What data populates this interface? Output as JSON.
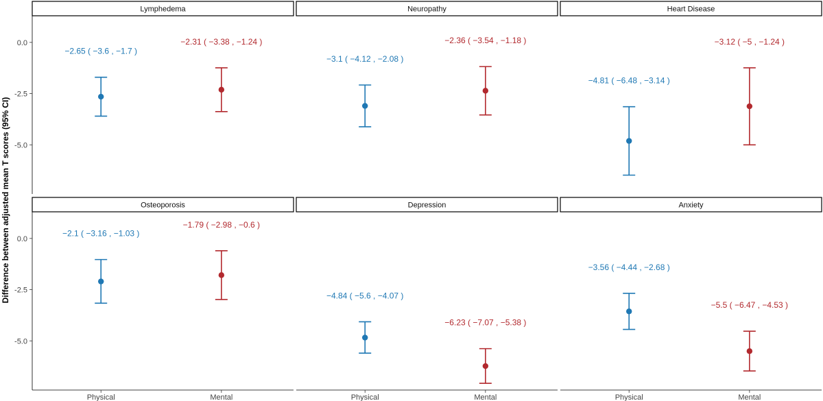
{
  "chart_data": {
    "type": "scatter",
    "subtype": "pointrange-facets",
    "ylabel": "Difference between adjusted mean T scores (95% CI)",
    "ylim": [
      -7.4,
      1.3
    ],
    "yticks": [
      0.0,
      -2.5,
      -5.0
    ],
    "ytick_labels": [
      "0.0",
      "-2.5",
      "-5.0"
    ],
    "categories": [
      "Physical",
      "Mental"
    ],
    "colors": {
      "Physical": "#1f78b4",
      "Mental": "#b2292e"
    },
    "facet_grid": {
      "rows": 2,
      "cols": 3
    },
    "grid": false,
    "facets": [
      {
        "title": "Lymphedema",
        "points": [
          {
            "category": "Physical",
            "estimate": -2.65,
            "lower": -3.6,
            "upper": -1.7,
            "label": "−2.65 ( −3.6 , −1.7 )"
          },
          {
            "category": "Mental",
            "estimate": -2.31,
            "lower": -3.38,
            "upper": -1.24,
            "label": "−2.31 ( −3.38 , −1.24 )"
          }
        ]
      },
      {
        "title": "Neuropathy",
        "points": [
          {
            "category": "Physical",
            "estimate": -3.1,
            "lower": -4.12,
            "upper": -2.08,
            "label": "−3.1 ( −4.12 , −2.08 )"
          },
          {
            "category": "Mental",
            "estimate": -2.36,
            "lower": -3.54,
            "upper": -1.18,
            "label": "−2.36 ( −3.54 , −1.18 )"
          }
        ]
      },
      {
        "title": "Heart Disease",
        "points": [
          {
            "category": "Physical",
            "estimate": -4.81,
            "lower": -6.48,
            "upper": -3.14,
            "label": "−4.81 ( −6.48 , −3.14 )"
          },
          {
            "category": "Mental",
            "estimate": -3.12,
            "lower": -5,
            "upper": -1.24,
            "label": "−3.12 ( −5 , −1.24 )"
          }
        ]
      },
      {
        "title": "Osteoporosis",
        "points": [
          {
            "category": "Physical",
            "estimate": -2.1,
            "lower": -3.16,
            "upper": -1.03,
            "label": "−2.1 ( −3.16 , −1.03 )"
          },
          {
            "category": "Mental",
            "estimate": -1.79,
            "lower": -2.98,
            "upper": -0.6,
            "label": "−1.79 ( −2.98 , −0.6 )"
          }
        ]
      },
      {
        "title": "Depression",
        "points": [
          {
            "category": "Physical",
            "estimate": -4.84,
            "lower": -5.6,
            "upper": -4.07,
            "label": "−4.84 ( −5.6 , −4.07 )"
          },
          {
            "category": "Mental",
            "estimate": -6.23,
            "lower": -7.07,
            "upper": -5.38,
            "label": "−6.23 ( −7.07 , −5.38 )"
          }
        ]
      },
      {
        "title": "Anxiety",
        "points": [
          {
            "category": "Physical",
            "estimate": -3.56,
            "lower": -4.44,
            "upper": -2.68,
            "label": "−3.56 ( −4.44 , −2.68 )"
          },
          {
            "category": "Mental",
            "estimate": -5.5,
            "lower": -6.47,
            "upper": -4.53,
            "label": "−5.5 ( −6.47 , −4.53 )"
          }
        ]
      }
    ]
  }
}
